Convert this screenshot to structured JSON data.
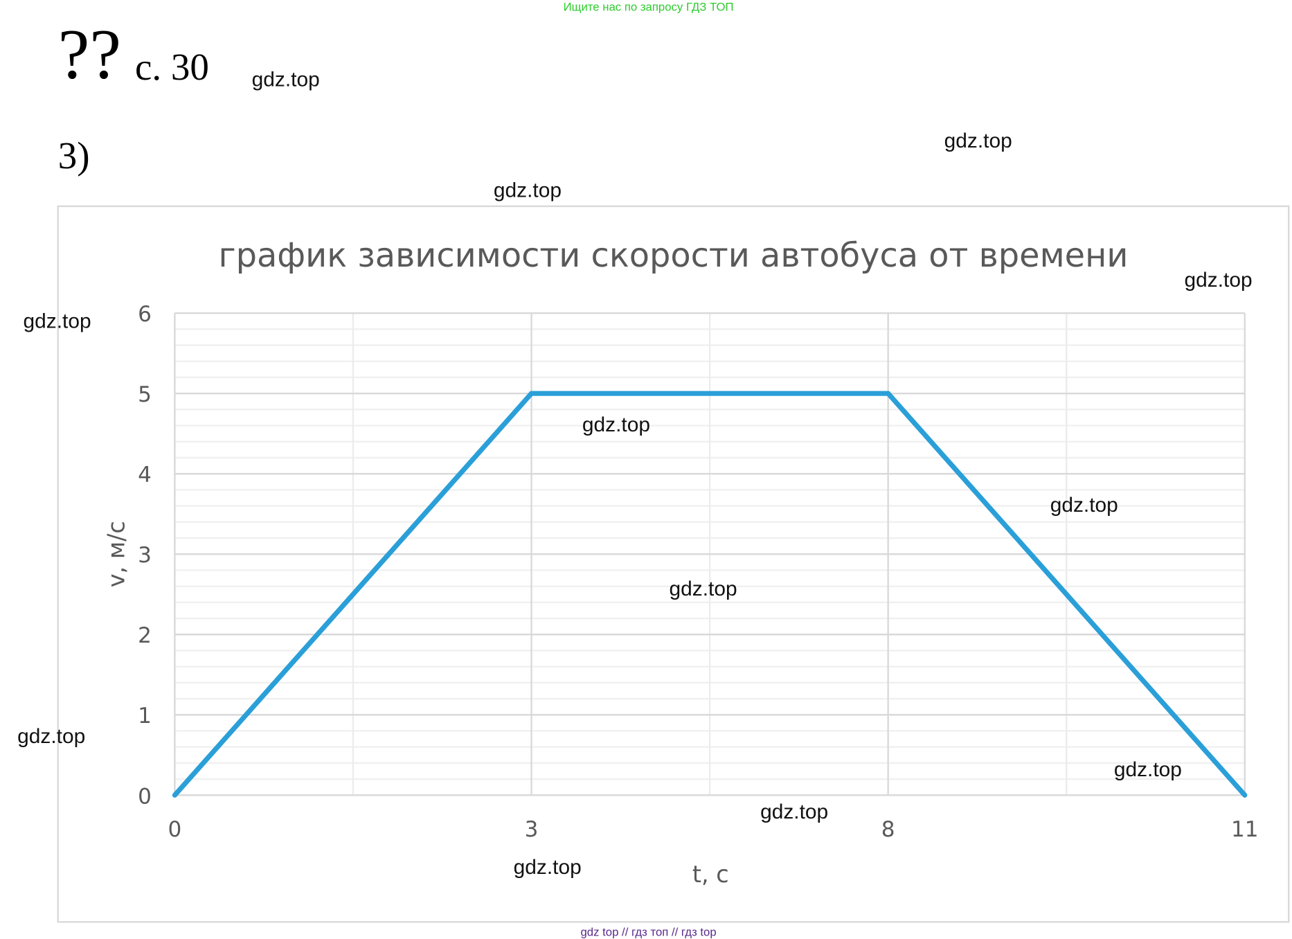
{
  "header": {
    "top_note": "Ищите нас по запросу ГДЗ ТОП",
    "marks": "??",
    "page": "с. 30",
    "task": "3)",
    "bottom_note": "gdz top  //  гдз топ  //  гдз top"
  },
  "watermarks": [
    "gdz.top",
    "gdz.top",
    "gdz.top",
    "gdz.top",
    "gdz.top",
    "gdz.top",
    "gdz.top",
    "gdz.top",
    "gdz.top",
    "gdz.top",
    "gdz.top",
    "gdz.top"
  ],
  "chart_data": {
    "type": "line",
    "title": "график зависимости скорости автобуса от времени",
    "xlabel": "t, с",
    "ylabel": "v, м/с",
    "categories": [
      "0",
      "3",
      "8",
      "11"
    ],
    "x_axis": "category",
    "values": [
      0,
      5,
      5,
      0
    ],
    "ylim": [
      0,
      6
    ],
    "yticks": [
      0,
      1,
      2,
      3,
      4,
      5,
      6
    ],
    "y_minor_step": 0.2,
    "grid": true,
    "legend": "none",
    "line_color": "#2a9fd8"
  }
}
